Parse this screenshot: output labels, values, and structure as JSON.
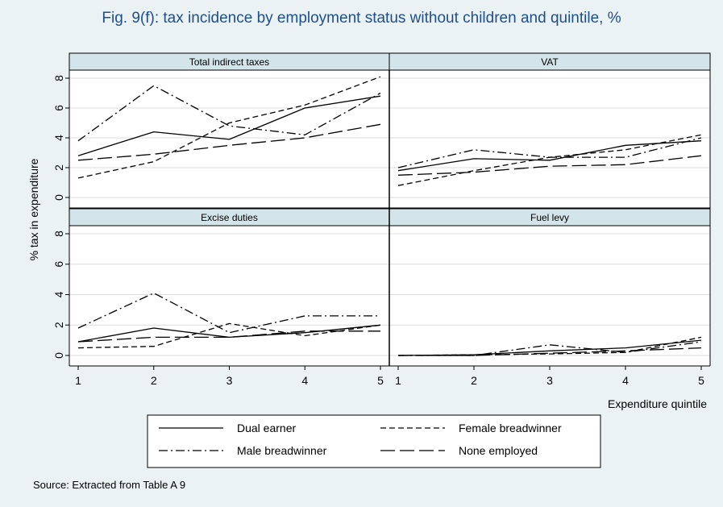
{
  "title": "Fig. 9(f): tax incidence by employment status without children and quintile, %",
  "source": "Source: Extracted from Table A 9",
  "colors": {
    "background": "#eaf2f3",
    "plot_bg": "#ffffff",
    "strip_bg": "#d3e4ea",
    "title": "#1f4e8c",
    "line": "#000000"
  },
  "chart_data": {
    "type": "line",
    "title": "Fig. 9(f): tax incidence by employment status without children and quintile, %",
    "xlabel": "Expenditure quintile",
    "ylabel": "% tax in expenditure",
    "x": [
      1,
      2,
      3,
      4,
      5
    ],
    "xlim": [
      1,
      5
    ],
    "ylim": [
      0,
      8
    ],
    "yticks": [
      0,
      2,
      4,
      6,
      8
    ],
    "grid": true,
    "legend_position": "bottom",
    "legend": [
      "Dual earner",
      "Female breadwinner",
      "Male breadwinner",
      "None employed"
    ],
    "panels": [
      {
        "title": "Total indirect taxes",
        "series": [
          {
            "name": "Dual earner",
            "style": "solid",
            "values": [
              2.8,
              4.4,
              3.9,
              6.0,
              6.8
            ]
          },
          {
            "name": "Female breadwinner",
            "style": "short-dash",
            "values": [
              1.3,
              2.4,
              5.0,
              6.2,
              8.1
            ]
          },
          {
            "name": "Male breadwinner",
            "style": "dash-dot",
            "values": [
              3.8,
              7.5,
              4.8,
              4.2,
              7.0
            ]
          },
          {
            "name": "None employed",
            "style": "long-dash",
            "values": [
              2.5,
              2.9,
              3.5,
              4.0,
              4.9
            ]
          }
        ]
      },
      {
        "title": "VAT",
        "series": [
          {
            "name": "Dual earner",
            "style": "solid",
            "values": [
              1.8,
              2.6,
              2.5,
              3.5,
              3.8
            ]
          },
          {
            "name": "Female breadwinner",
            "style": "short-dash",
            "values": [
              0.8,
              1.8,
              2.7,
              3.2,
              4.2
            ]
          },
          {
            "name": "Male breadwinner",
            "style": "dash-dot",
            "values": [
              2.0,
              3.2,
              2.7,
              2.7,
              4.0
            ]
          },
          {
            "name": "None employed",
            "style": "long-dash",
            "values": [
              1.5,
              1.7,
              2.1,
              2.2,
              2.8
            ]
          }
        ]
      },
      {
        "title": "Excise duties",
        "series": [
          {
            "name": "Dual earner",
            "style": "solid",
            "values": [
              0.9,
              1.8,
              1.2,
              1.5,
              2.0
            ]
          },
          {
            "name": "Female breadwinner",
            "style": "short-dash",
            "values": [
              0.5,
              0.6,
              2.1,
              1.3,
              2.0
            ]
          },
          {
            "name": "Male breadwinner",
            "style": "dash-dot",
            "values": [
              1.8,
              4.1,
              1.5,
              2.6,
              2.6
            ]
          },
          {
            "name": "None employed",
            "style": "long-dash",
            "values": [
              0.9,
              1.2,
              1.2,
              1.6,
              1.6
            ]
          }
        ]
      },
      {
        "title": "Fuel levy",
        "series": [
          {
            "name": "Dual earner",
            "style": "solid",
            "values": [
              0.0,
              0.05,
              0.3,
              0.5,
              1.0
            ]
          },
          {
            "name": "Female breadwinner",
            "style": "short-dash",
            "values": [
              0.0,
              0.05,
              0.1,
              0.2,
              1.2
            ]
          },
          {
            "name": "Male breadwinner",
            "style": "dash-dot",
            "values": [
              0.0,
              0.0,
              0.7,
              0.2,
              0.9
            ]
          },
          {
            "name": "None employed",
            "style": "long-dash",
            "values": [
              0.0,
              0.0,
              0.15,
              0.3,
              0.5
            ]
          }
        ]
      }
    ]
  }
}
